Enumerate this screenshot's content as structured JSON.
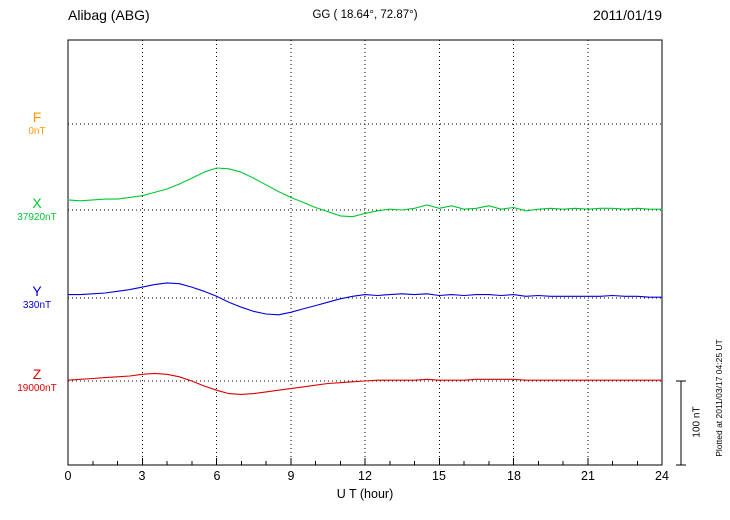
{
  "header": {
    "station": "Alibag (ABG)",
    "coordinates": "GG ( 18.64°,  72.87°)",
    "date": "2011/01/19"
  },
  "axis": {
    "xlabel": "U T (hour)",
    "x_ticks": [
      "0",
      "3",
      "6",
      "9",
      "12",
      "15",
      "18",
      "21",
      "24"
    ]
  },
  "components": [
    {
      "id": "F",
      "label": "F",
      "baseline_label": "0nT",
      "color": "#ff9900"
    },
    {
      "id": "X",
      "label": "X",
      "baseline_label": "37920nT",
      "color": "#00c832"
    },
    {
      "id": "Y",
      "label": "Y",
      "baseline_label": "330nT",
      "color": "#0000dd"
    },
    {
      "id": "Z",
      "label": "Z",
      "baseline_label": "19000nT",
      "color": "#dd0000"
    }
  ],
  "scale_bar": {
    "label": "100 nT",
    "length_nT": 100
  },
  "footer_note": "Plotted at 2011/03/17 04:25 UT",
  "chart_data": {
    "type": "line",
    "title": "Alibag (ABG) magnetogram 2011/01/19",
    "xlabel": "U T (hour)",
    "x_range": [
      0,
      24
    ],
    "x_ticks": [
      0,
      3,
      6,
      9,
      12,
      15,
      18,
      21,
      24
    ],
    "grid": "dotted baselines and 3-hour verticals",
    "scale_division_nT": 100,
    "values_unit": "nT offset from component baseline",
    "hours": [
      0,
      0.5,
      1,
      1.5,
      2,
      2.5,
      3,
      3.5,
      4,
      4.5,
      5,
      5.5,
      6,
      6.5,
      7,
      7.5,
      8,
      8.5,
      9,
      9.5,
      10,
      10.5,
      11,
      11.5,
      12,
      12.5,
      13,
      13.5,
      14,
      14.5,
      15,
      15.5,
      16,
      16.5,
      17,
      17.5,
      18,
      18.5,
      19,
      19.5,
      20,
      20.5,
      21,
      21.5,
      22,
      22.5,
      23,
      23.5,
      24
    ],
    "series": [
      {
        "name": "F",
        "baseline_nT": 0,
        "color": "#ff9900",
        "plotted": false,
        "values": []
      },
      {
        "name": "X",
        "baseline_nT": 37920,
        "color": "#00c832",
        "plotted": true,
        "values": [
          12,
          11,
          12,
          13,
          13,
          15,
          17,
          21,
          25,
          31,
          38,
          45,
          50,
          49,
          45,
          38,
          30,
          22,
          15,
          9,
          3,
          -2,
          -7,
          -8,
          -4,
          -1,
          1,
          0,
          2,
          6,
          2,
          5,
          1,
          2,
          5,
          1,
          3,
          -1,
          1,
          2,
          1,
          2,
          1,
          2,
          2,
          1,
          2,
          1,
          1
        ]
      },
      {
        "name": "Y",
        "baseline_nT": 330,
        "color": "#0000dd",
        "plotted": true,
        "values": [
          4,
          4,
          5,
          6,
          8,
          10,
          13,
          16,
          18,
          17,
          13,
          8,
          2,
          -5,
          -11,
          -16,
          -19,
          -20,
          -17,
          -13,
          -9,
          -5,
          -1,
          2,
          4,
          3,
          4,
          5,
          4,
          5,
          3,
          4,
          3,
          4,
          4,
          3,
          4,
          2,
          3,
          2,
          2,
          2,
          2,
          2,
          3,
          2,
          2,
          1,
          1
        ]
      },
      {
        "name": "Z",
        "baseline_nT": 19000,
        "color": "#dd0000",
        "plotted": true,
        "values": [
          1,
          2,
          3,
          4,
          5,
          6,
          8,
          9,
          8,
          5,
          0,
          -6,
          -11,
          -15,
          -16,
          -15,
          -13,
          -11,
          -9,
          -7,
          -5,
          -3,
          -2,
          -1,
          0,
          1,
          1,
          1,
          1,
          2,
          1,
          1,
          1,
          2,
          2,
          2,
          2,
          1,
          1,
          1,
          1,
          1,
          1,
          1,
          1,
          1,
          1,
          1,
          1
        ]
      }
    ]
  }
}
